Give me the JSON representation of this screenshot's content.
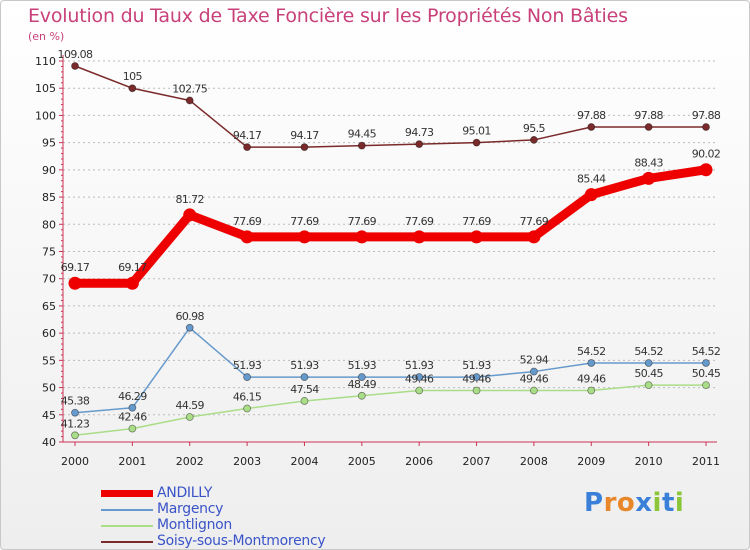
{
  "header": {
    "title": "Evolution du Taux de Taxe Foncière sur les Propriétés Non Bâties",
    "unit": "(en %)"
  },
  "logo": {
    "text": "Proxiti"
  },
  "colors": {
    "title": "#c8417a",
    "axis": "#cc3355",
    "legend_text": "#3a54c8"
  },
  "chart_data": {
    "type": "line",
    "title": "Evolution du Taux de Taxe Foncière sur les Propriétés Non Bâties",
    "ylabel": "(en %)",
    "xlabel": "",
    "ylim": [
      40,
      110
    ],
    "yticks": [
      "40",
      "45",
      "50",
      "55",
      "60",
      "65",
      "70",
      "75",
      "80",
      "85",
      "90",
      "95",
      "100",
      "105",
      "110"
    ],
    "categories": [
      "2000",
      "2001",
      "2002",
      "2003",
      "2004",
      "2005",
      "2006",
      "2007",
      "2008",
      "2009",
      "2010",
      "2011"
    ],
    "legend_position": "bottom-left",
    "series": [
      {
        "name": "ANDILLY",
        "color": "#ee0000",
        "values": [
          69.17,
          69.17,
          81.72,
          77.69,
          77.69,
          77.69,
          77.69,
          77.69,
          77.69,
          85.44,
          88.43,
          90.02
        ],
        "labels": [
          "69.17",
          "69.17",
          "81.72",
          "77.69",
          "77.69",
          "77.69",
          "77.69",
          "77.69",
          "77.69",
          "85.44",
          "88.43",
          "90.02"
        ]
      },
      {
        "name": "Margency",
        "color": "#6699cc",
        "values": [
          45.38,
          46.29,
          60.98,
          51.93,
          51.93,
          51.93,
          51.93,
          51.93,
          52.94,
          54.52,
          54.52,
          54.52
        ],
        "labels": [
          "45.38",
          "46.29",
          "60.98",
          "51.93",
          "51.93",
          "51.93",
          "51.93",
          "51.93",
          "52.94",
          "54.52",
          "54.52",
          "54.52"
        ]
      },
      {
        "name": "Montlignon",
        "color": "#aadd88",
        "values": [
          41.23,
          42.46,
          44.59,
          46.15,
          47.54,
          48.49,
          49.46,
          49.46,
          49.46,
          49.46,
          50.45,
          50.45
        ],
        "labels": [
          "41.23",
          "42.46",
          "44.59",
          "46.15",
          "47.54",
          "48.49",
          "49.46",
          "49.46",
          "49.46",
          "49.46",
          "50.45",
          "50.45"
        ]
      },
      {
        "name": "Soisy-sous-Montmorency",
        "color": "#7a2a2a",
        "values": [
          109.08,
          105,
          102.75,
          94.17,
          94.17,
          94.45,
          94.73,
          95.01,
          95.5,
          97.88,
          97.88,
          97.88
        ],
        "labels": [
          "109.08",
          "105",
          "102.75",
          "94.17",
          "94.17",
          "94.45",
          "94.73",
          "95.01",
          "95.5",
          "97.88",
          "97.88",
          "97.88"
        ]
      }
    ]
  }
}
